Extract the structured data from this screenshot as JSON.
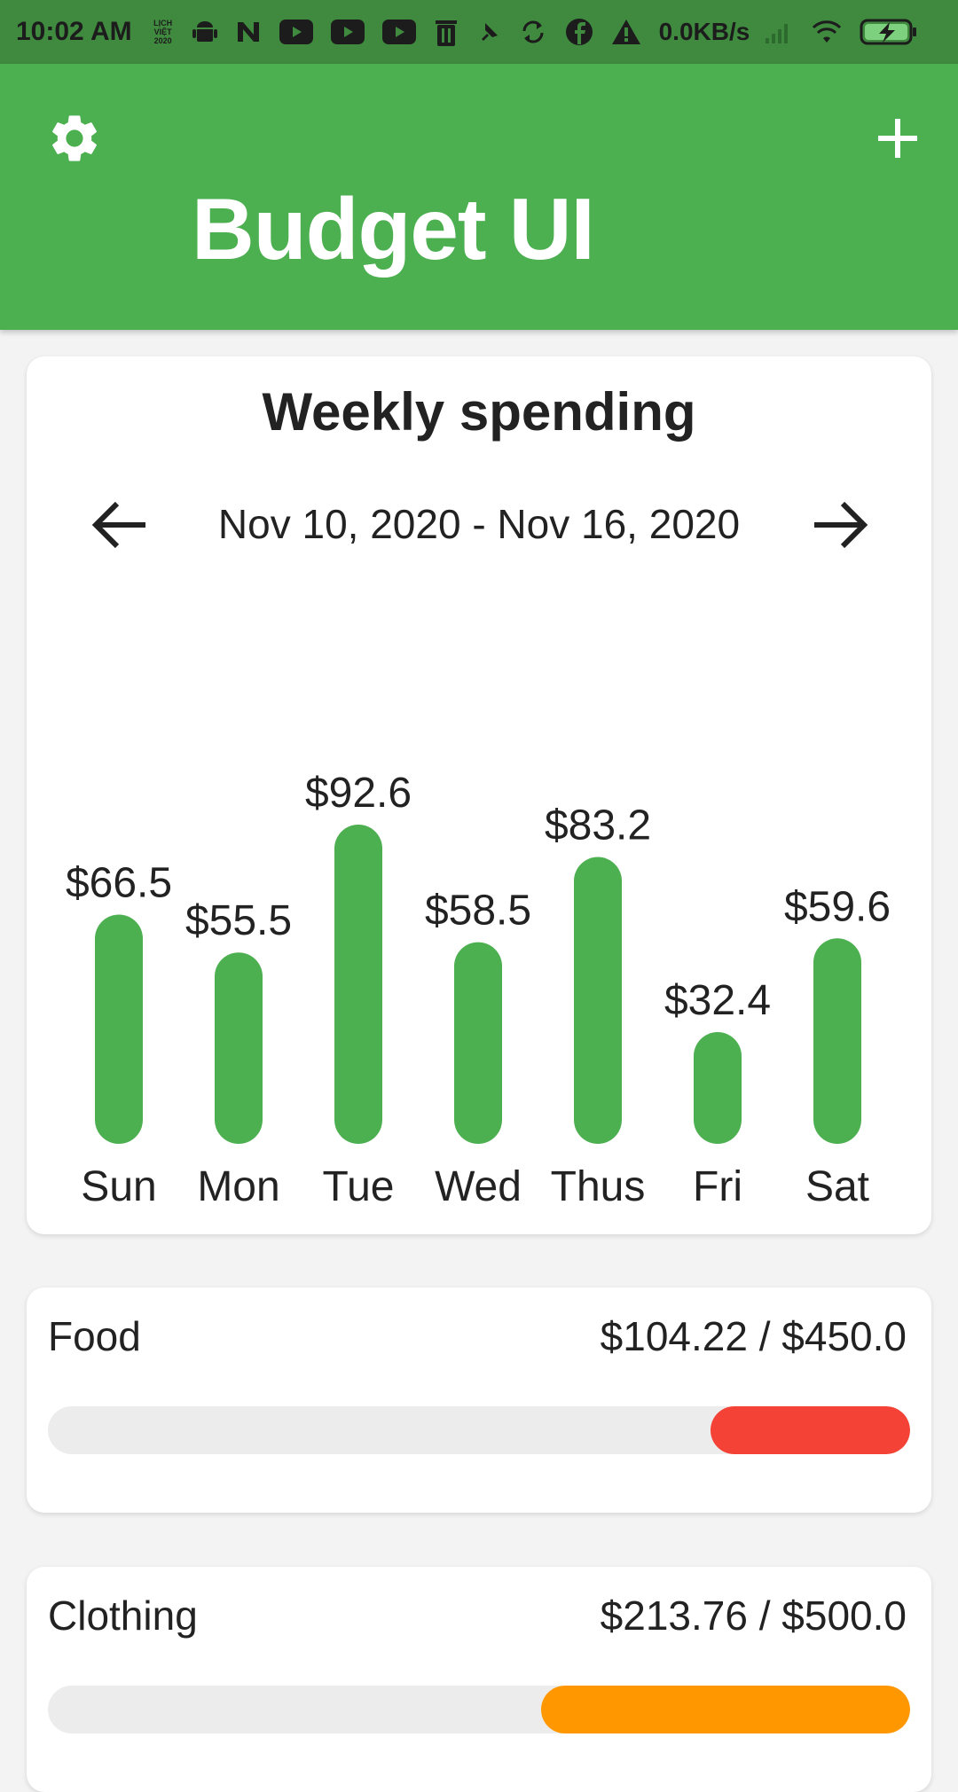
{
  "status_bar": {
    "time": "10:02 AM",
    "calendar_widget_text": [
      "LỊCH",
      "VIỆT",
      "2020"
    ],
    "network_speed": "0.0KB/s",
    "icons": [
      "calendar-icon",
      "android-icon",
      "n-icon",
      "youtube-icon",
      "youtube-icon",
      "youtube-icon",
      "trash-icon",
      "pin-icon",
      "sync-icon",
      "facebook-icon",
      "warning-icon",
      "signal-icon",
      "wifi-icon",
      "battery-charging-icon"
    ]
  },
  "appbar": {
    "title": "Budget UI",
    "left_icon": "gear-icon",
    "right_icon": "plus-icon",
    "color": "#4caf50"
  },
  "weekly": {
    "title": "Weekly spending",
    "date_range": "Nov 10, 2020 - Nov 16, 2020",
    "prev_icon": "arrow-left-icon",
    "next_icon": "arrow-right-icon"
  },
  "chart_data": {
    "type": "bar",
    "categories": [
      "Sun",
      "Mon",
      "Tue",
      "Wed",
      "Thus",
      "Fri",
      "Sat"
    ],
    "values": [
      66.5,
      55.5,
      92.6,
      58.5,
      83.2,
      32.4,
      59.6
    ],
    "value_labels": [
      "$66.5",
      "$55.5",
      "$92.6",
      "$58.5",
      "$83.2",
      "$32.4",
      "$59.6"
    ],
    "bar_color": "#4caf50"
  },
  "categories": [
    {
      "name": "Food",
      "amount_text": "$104.22 / $450.0",
      "spent": 104.22,
      "budget": 450.0,
      "fill_color": "#f44336"
    },
    {
      "name": "Clothing",
      "amount_text": "$213.76 / $500.0",
      "spent": 213.76,
      "budget": 500.0,
      "fill_color": "#ff9800"
    }
  ]
}
